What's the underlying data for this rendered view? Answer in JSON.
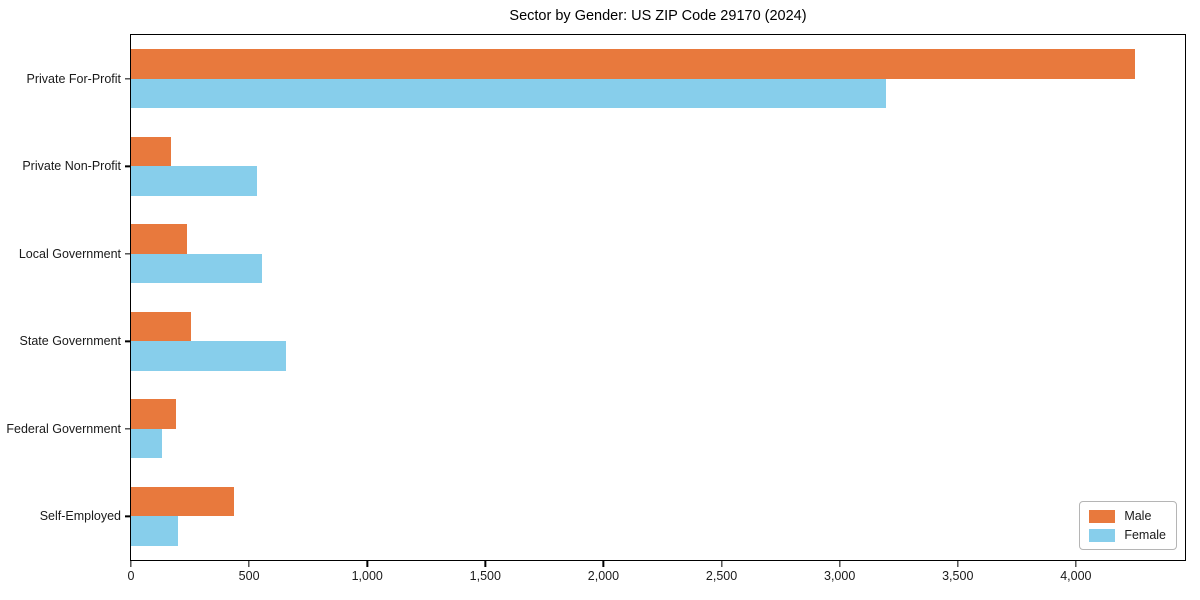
{
  "title": "Sector by Gender: US ZIP Code 29170 (2024)",
  "colors": {
    "male": "#e8793d",
    "female": "#87ceeb",
    "axis": "#000000",
    "text": "#1a1a1a"
  },
  "legend": {
    "items": [
      {
        "label": "Male",
        "color": "#e8793d"
      },
      {
        "label": "Female",
        "color": "#87ceeb"
      }
    ]
  },
  "chart_data": {
    "type": "bar",
    "orientation": "horizontal",
    "title": "Sector by Gender: US ZIP Code 29170 (2024)",
    "categories": [
      "Private For-Profit",
      "Private Non-Profit",
      "Local Government",
      "State Government",
      "Federal Government",
      "Self-Employed"
    ],
    "series": [
      {
        "name": "Male",
        "color": "#e8793d",
        "values": [
          4250,
          170,
          235,
          255,
          190,
          435
        ]
      },
      {
        "name": "Female",
        "color": "#87ceeb",
        "values": [
          3195,
          535,
          555,
          655,
          130,
          200
        ]
      }
    ],
    "xlabel": "",
    "ylabel": "",
    "xlim": [
      0,
      4462
    ],
    "xticks": [
      0,
      500,
      1000,
      1500,
      2000,
      2500,
      3000,
      3500,
      4000
    ],
    "xtick_labels": [
      "0",
      "500",
      "1,000",
      "1,500",
      "2,000",
      "2,500",
      "3,000",
      "3,500",
      "4,000"
    ],
    "grid": false,
    "legend_position": "lower right"
  }
}
